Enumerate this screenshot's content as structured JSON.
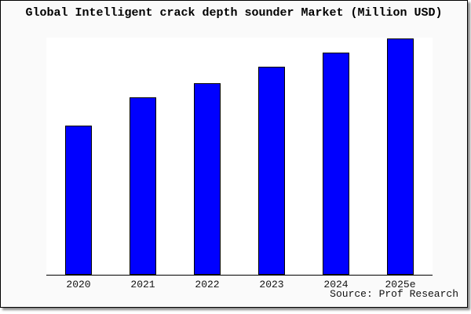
{
  "chart_data": {
    "type": "bar",
    "title": "Global Intelligent crack depth sounder Market (Million USD)",
    "categories": [
      "2020",
      "2021",
      "2022",
      "2023",
      "2024",
      "2025e"
    ],
    "values": [
      63,
      75,
      81,
      88,
      94,
      100
    ],
    "values_note": "No y-axis scale, gridlines or data labels shown in image; values are relative bar heights normalized to 2025e = 100",
    "ylim": [
      0,
      100
    ],
    "xlabel": "",
    "ylabel": "",
    "grid": false,
    "legend": false,
    "bar_color": "#0000ff",
    "bar_border_color": "#000000",
    "frame_background": "#fafafa",
    "plot_background": "#ffffff",
    "source": "Source: Prof Research"
  }
}
